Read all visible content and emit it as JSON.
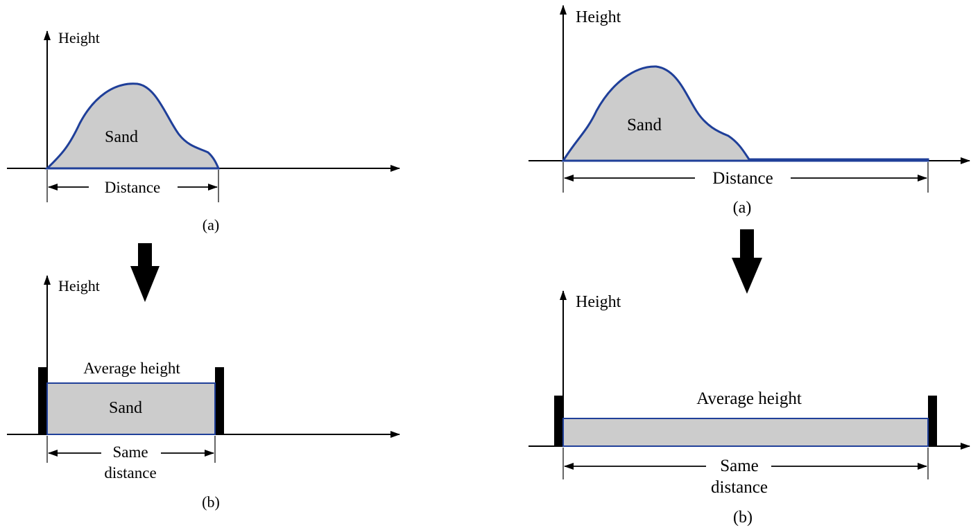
{
  "colors": {
    "sand_fill": "#cccccc",
    "outline": "#1f3f99",
    "ink": "#000000"
  },
  "left": {
    "top": {
      "axis_label": "Height",
      "fill_label": "Sand",
      "span_label": "Distance",
      "caption": "(a)"
    },
    "bottom": {
      "axis_label": "Height",
      "level_label": "Average height",
      "fill_label": "Sand",
      "span_label_line1": "Same",
      "span_label_line2": "distance",
      "caption": "(b)"
    }
  },
  "right": {
    "top": {
      "axis_label": "Height",
      "fill_label": "Sand",
      "span_label": "Distance",
      "caption": "(a)"
    },
    "bottom": {
      "axis_label": "Height",
      "level_label": "Average height",
      "span_label_line1": "Same",
      "span_label_line2": "distance",
      "caption": "(b)"
    }
  },
  "transition_icon": "down-arrow-icon"
}
